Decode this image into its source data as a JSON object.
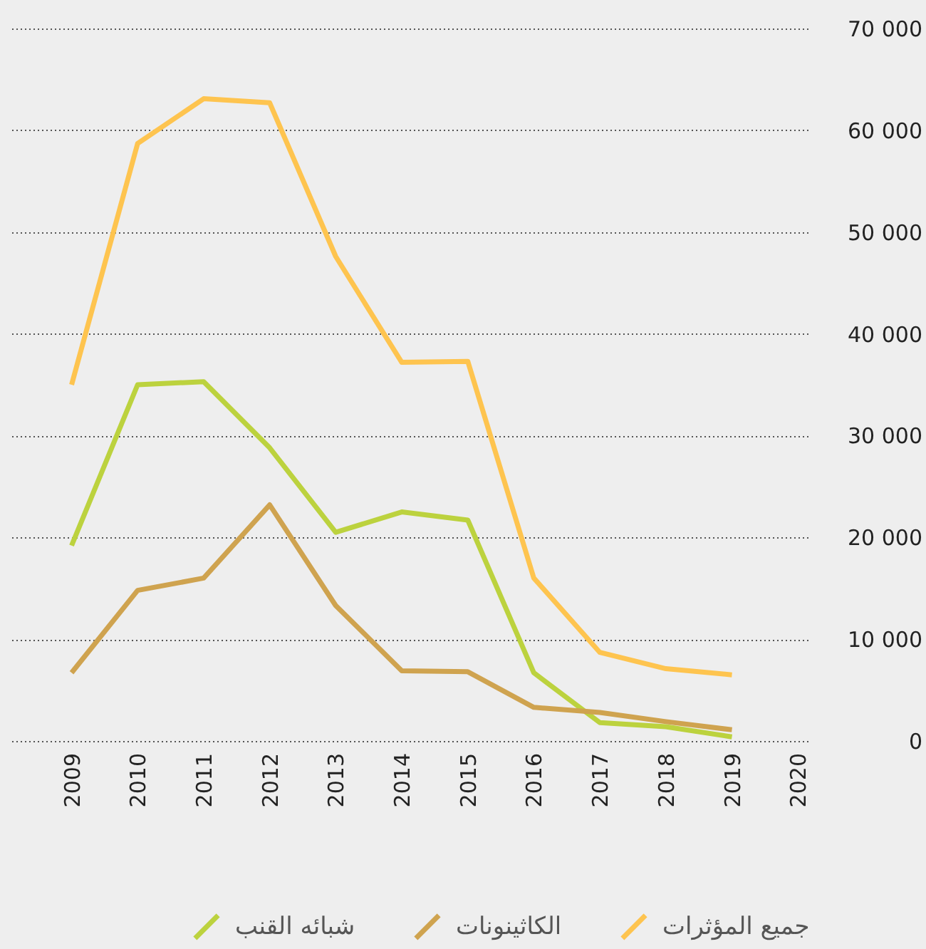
{
  "chart_data": {
    "type": "line",
    "categories": [
      "2009",
      "2010",
      "2011",
      "2012",
      "2013",
      "2014",
      "2015",
      "2016",
      "2017",
      "2018",
      "2019",
      "2020"
    ],
    "series": [
      {
        "name": "شبائه القنب",
        "color": "#bcd23e",
        "values": [
          19200,
          35000,
          35300,
          28800,
          20500,
          22500,
          21700,
          6700,
          1800,
          1400,
          400,
          null
        ]
      },
      {
        "name": "الكاثينونات",
        "color": "#cfa34f",
        "values": [
          6700,
          14800,
          16000,
          23200,
          13300,
          6900,
          6800,
          3300,
          2800,
          1900,
          1100,
          null
        ]
      },
      {
        "name": "جميع المؤثرات",
        "color": "#fec44f",
        "values": [
          35000,
          58700,
          63100,
          62700,
          47600,
          37200,
          37300,
          16000,
          8700,
          7100,
          6500,
          null
        ]
      }
    ],
    "ylim": [
      0,
      70000
    ],
    "yticks": [
      0,
      {
        "value": 10000,
        "label": "10 000"
      },
      {
        "value": 20000,
        "label": "20 000"
      },
      {
        "value": 30000,
        "label": "30 000"
      },
      {
        "value": 40000,
        "label": "40 000"
      },
      {
        "value": 50000,
        "label": "50 000"
      },
      {
        "value": 60000,
        "label": "60 000"
      },
      {
        "value": 70000,
        "label": "70 000"
      }
    ],
    "grid": "y",
    "legend": "bottom",
    "line_style": "solid"
  }
}
